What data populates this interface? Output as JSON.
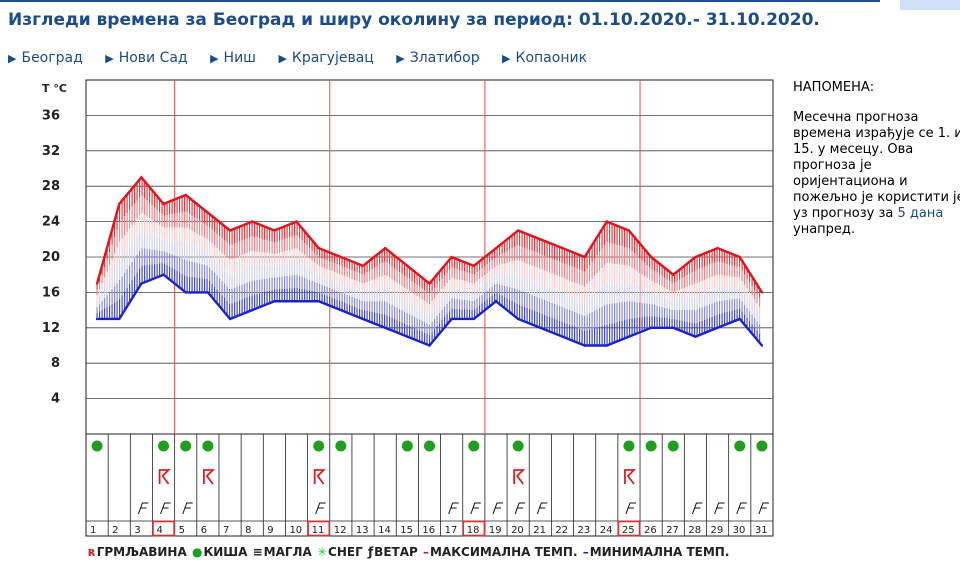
{
  "title": "Изгледи времена за Београд и ширу околину за период: 01.10.2020.- 31.10.2020.",
  "cities": [
    "Београд",
    "Нови Сад",
    "Ниш",
    "Крагујевац",
    "Златибор",
    "Копаоник"
  ],
  "note": {
    "heading": "НАПОМЕНА:",
    "text_before": "Месечна прогноза времена израђује се 1. и 15. у месецу. Ова прогноза је оријентациона и пожељно је користити је уз прогнозу за ",
    "highlight": "5 дана",
    "text_after": " унапред."
  },
  "legend": {
    "thunder": "ГРМЉАВИНА",
    "rain": "КИША",
    "fog": "МАГЛА",
    "snow": "СНЕГ",
    "wind": "ВЕТАР",
    "max": "МАКСИМАЛНА ТЕМП.",
    "min": "МИНИМАЛНА ТЕМП."
  },
  "colors": {
    "max": "#e0141e",
    "min": "#1a23c8",
    "rain": "#1f9e1f",
    "thunder": "#d92020",
    "snow": "#22cc22",
    "title": "#1a4c8c"
  },
  "chart_data": {
    "type": "line",
    "ylabel": "T °C",
    "yticks": [
      4,
      8,
      12,
      16,
      20,
      24,
      28,
      32,
      36
    ],
    "ylim": [
      0,
      40
    ],
    "days": [
      1,
      2,
      3,
      4,
      5,
      6,
      7,
      8,
      9,
      10,
      11,
      12,
      13,
      14,
      15,
      16,
      17,
      18,
      19,
      20,
      21,
      22,
      23,
      24,
      25,
      26,
      27,
      28,
      29,
      30,
      31
    ],
    "highlighted_days": [
      4,
      11,
      18,
      25
    ],
    "series": [
      {
        "name": "МАКСИМАЛНА ТЕМП.",
        "values": [
          17,
          26,
          29,
          26,
          27,
          25,
          23,
          24,
          23,
          24,
          21,
          20,
          19,
          21,
          19,
          17,
          20,
          19,
          21,
          23,
          22,
          21,
          20,
          24,
          23,
          20,
          18,
          20,
          21,
          20,
          16
        ]
      },
      {
        "name": "МИНИМАЛНА ТЕМП.",
        "values": [
          13,
          13,
          17,
          18,
          16,
          16,
          13,
          14,
          15,
          15,
          15,
          14,
          13,
          12,
          11,
          10,
          13,
          13,
          15,
          13,
          12,
          11,
          10,
          10,
          11,
          12,
          12,
          11,
          12,
          13,
          10
        ]
      }
    ],
    "rain_days": [
      1,
      4,
      5,
      6,
      11,
      12,
      15,
      16,
      18,
      20,
      25,
      26,
      27,
      30,
      31
    ],
    "thunder_days": [
      4,
      6,
      11,
      20,
      25
    ],
    "wind_days": [
      3,
      4,
      5,
      11,
      17,
      18,
      19,
      20,
      21,
      25,
      28,
      29,
      30,
      31
    ],
    "grid": true
  }
}
